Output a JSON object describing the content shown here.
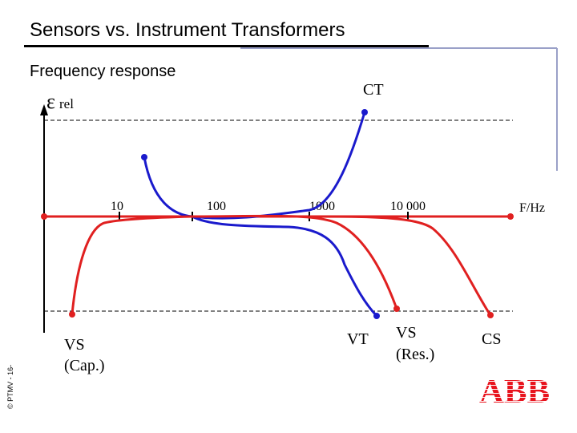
{
  "slide": {
    "title": "Sensors vs. Instrument Transformers",
    "subtitle": "Frequency response",
    "copyright": "© PTMV - 16-",
    "logo_text": "ABB"
  },
  "diagram": {
    "y_axis_symbol": "ε",
    "y_axis_subscript": "rel",
    "x_axis_unit": "F/Hz",
    "ticks": [
      "10",
      "100",
      "1000",
      "10 000"
    ],
    "curve_labels": {
      "ct": "CT",
      "vt": "VT",
      "vs_cap_line1": "VS",
      "vs_cap_line2": "(Cap.)",
      "vs_res_line1": "VS",
      "vs_res_line2": "(Res.)",
      "cs": "CS"
    },
    "colors": {
      "red": "#e02020",
      "blue": "#1a1acc",
      "frame": "#9aa0c8",
      "logo": "#e8141e"
    }
  }
}
